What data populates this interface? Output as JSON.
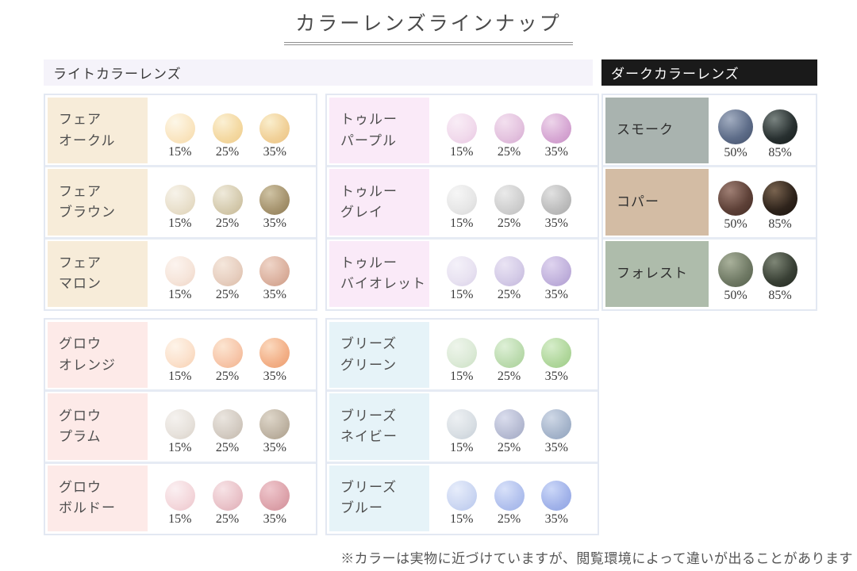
{
  "title": "カラーレンズラインナップ",
  "headers": {
    "light": "ライトカラーレンズ",
    "dark": "ダークカラーレンズ"
  },
  "note": "※カラーは実物に近づけていますが、閲覧環境によって違いが出ることがあります",
  "palette": {
    "page_bg": "#ffffff",
    "title_color": "#4a4a4a",
    "title_underline": "#8f8f8f",
    "header_light_bg": "#f5f3fa",
    "header_light_color": "#3a3a3a",
    "header_dark_bg": "#1a1a1a",
    "header_dark_color": "#ffffff",
    "group_border": "#e3e8f2",
    "row_separator": "#e6ebf4",
    "note_color": "#555555"
  },
  "groups": {
    "fair": {
      "rows": [
        {
          "name": [
            "フェア",
            "オークル"
          ],
          "name_bg": "#f7ecd9",
          "swatches": [
            {
              "pct": "15%",
              "hi": "#fdf7e8",
              "base": "#fae6c2",
              "rim": "#f5d9a8"
            },
            {
              "pct": "25%",
              "hi": "#fbf0d4",
              "base": "#f4d9a2",
              "rim": "#eecb8a"
            },
            {
              "pct": "35%",
              "hi": "#faeecd",
              "base": "#f1d199",
              "rim": "#ebc180"
            }
          ]
        },
        {
          "name": [
            "フェア",
            "ブラウン"
          ],
          "name_bg": "#f7ecd9",
          "swatches": [
            {
              "pct": "15%",
              "hi": "#f7f3ea",
              "base": "#e9e0cc",
              "rim": "#dcd0b4"
            },
            {
              "pct": "25%",
              "hi": "#efeadb",
              "base": "#d6ccb0",
              "rim": "#c5b793"
            },
            {
              "pct": "35%",
              "hi": "#cfc3a4",
              "base": "#a79570",
              "rim": "#8c7a53"
            }
          ]
        },
        {
          "name": [
            "フェア",
            "マロン"
          ],
          "name_bg": "#f7ecd9",
          "swatches": [
            {
              "pct": "15%",
              "hi": "#fcf4ef",
              "base": "#f6e5da",
              "rim": "#eed3c4"
            },
            {
              "pct": "25%",
              "hi": "#f5e7dc",
              "base": "#e7cfc0",
              "rim": "#dbbba5"
            },
            {
              "pct": "35%",
              "hi": "#efd5c8",
              "base": "#dcb2a0",
              "rim": "#cc9a84"
            }
          ]
        }
      ]
    },
    "glow": {
      "rows": [
        {
          "name": [
            "グロウ",
            "オレンジ"
          ],
          "name_bg": "#fdeae8",
          "swatches": [
            {
              "pct": "15%",
              "hi": "#fef4e9",
              "base": "#fbe1cc",
              "rim": "#f7ceae"
            },
            {
              "pct": "25%",
              "hi": "#fce5d1",
              "base": "#f7c7ab",
              "rim": "#f1b28b"
            },
            {
              "pct": "35%",
              "hi": "#fbd9be",
              "base": "#f3b189",
              "rim": "#eb9c6d"
            }
          ]
        },
        {
          "name": [
            "グロウ",
            "プラム"
          ],
          "name_bg": "#fdeae8",
          "swatches": [
            {
              "pct": "15%",
              "hi": "#f5f2ef",
              "base": "#e7e2dc",
              "rim": "#d8d0c6"
            },
            {
              "pct": "25%",
              "hi": "#eae5df",
              "base": "#d4ccc3",
              "rim": "#c2b7aa"
            },
            {
              "pct": "35%",
              "hi": "#ded6c9",
              "base": "#c0b5a5",
              "rim": "#a99c87"
            }
          ]
        },
        {
          "name": [
            "グロウ",
            "ボルドー"
          ],
          "name_bg": "#fdeae8",
          "swatches": [
            {
              "pct": "15%",
              "hi": "#fbf0f2",
              "base": "#f4d8dc",
              "rim": "#ebc3ca"
            },
            {
              "pct": "25%",
              "hi": "#f7e3e6",
              "base": "#eac4ca",
              "rim": "#ddaab3"
            },
            {
              "pct": "35%",
              "hi": "#efc7cd",
              "base": "#dea5ad",
              "rim": "#cf8c96"
            }
          ]
        }
      ]
    },
    "true": {
      "rows": [
        {
          "name": [
            "トゥルー",
            "パープル"
          ],
          "name_bg": "#faeaf8",
          "swatches": [
            {
              "pct": "15%",
              "hi": "#f9edf6",
              "base": "#f1daec",
              "rim": "#e8c5e1"
            },
            {
              "pct": "25%",
              "hi": "#f3e0ef",
              "base": "#e4c3df",
              "rim": "#d5a9d1"
            },
            {
              "pct": "35%",
              "hi": "#edd5ea",
              "base": "#d7a8d4",
              "rim": "#c78fc3"
            }
          ]
        },
        {
          "name": [
            "トゥルー",
            "グレイ"
          ],
          "name_bg": "#faeaf8",
          "swatches": [
            {
              "pct": "15%",
              "hi": "#f6f6f6",
              "base": "#e7e7e7",
              "rim": "#d7d7d7"
            },
            {
              "pct": "25%",
              "hi": "#eaeaea",
              "base": "#d0d0d0",
              "rim": "#bdbdbd"
            },
            {
              "pct": "35%",
              "hi": "#e1e1e1",
              "base": "#bebebe",
              "rim": "#a9a9a9"
            }
          ]
        },
        {
          "name": [
            "トゥルー",
            "バイオレット"
          ],
          "name_bg": "#faeaf8",
          "swatches": [
            {
              "pct": "15%",
              "hi": "#f4f1f9",
              "base": "#e8e2f1",
              "rim": "#d8cfe8"
            },
            {
              "pct": "25%",
              "hi": "#eae4f4",
              "base": "#d4cbe7",
              "rim": "#c2b5da"
            },
            {
              "pct": "35%",
              "hi": "#dfd4ef",
              "base": "#c2b3dd",
              "rim": "#ae9ad0"
            }
          ]
        }
      ]
    },
    "breeze": {
      "rows": [
        {
          "name": [
            "ブリーズ",
            "グリーン"
          ],
          "name_bg": "#e6f3f8",
          "swatches": [
            {
              "pct": "15%",
              "hi": "#eef5eb",
              "base": "#dcead7",
              "rim": "#c9dfc0"
            },
            {
              "pct": "25%",
              "hi": "#def0d7",
              "base": "#bddcb0",
              "rim": "#a8d096"
            },
            {
              "pct": "35%",
              "hi": "#d6edca",
              "base": "#b2d89e",
              "rim": "#9ccb85"
            }
          ]
        },
        {
          "name": [
            "ブリーズ",
            "ネイビー"
          ],
          "name_bg": "#e6f3f8",
          "swatches": [
            {
              "pct": "15%",
              "hi": "#edf0f3",
              "base": "#d9dfe4",
              "rim": "#c4cdd6"
            },
            {
              "pct": "25%",
              "hi": "#dadded",
              "base": "#b8bdd4",
              "rim": "#a0a7c2"
            },
            {
              "pct": "35%",
              "hi": "#cfd8e6",
              "base": "#a7b6cc",
              "rim": "#8fa2bd"
            }
          ]
        },
        {
          "name": [
            "ブリーズ",
            "ブルー"
          ],
          "name_bg": "#e6f3f8",
          "swatches": [
            {
              "pct": "15%",
              "hi": "#e7edfb",
              "base": "#ccd7f2",
              "rim": "#b5c5ec"
            },
            {
              "pct": "25%",
              "hi": "#d8e1f9",
              "base": "#b3c2ee",
              "rim": "#9cb0e7"
            },
            {
              "pct": "35%",
              "hi": "#ccd8f8",
              "base": "#a3b4ea",
              "rim": "#8ca1e2"
            }
          ]
        }
      ]
    },
    "dark": {
      "rows": [
        {
          "name": [
            "スモーク"
          ],
          "name_bg": "#a9b3af",
          "swatches": [
            {
              "pct": "50%",
              "hi": "#a2adc0",
              "base": "#5d6c88",
              "rim": "#434f68"
            },
            {
              "pct": "85%",
              "hi": "#798380",
              "base": "#283030",
              "rim": "#141a19"
            }
          ]
        },
        {
          "name": [
            "コパー"
          ],
          "name_bg": "#d3bca4",
          "swatches": [
            {
              "pct": "50%",
              "hi": "#9f7f74",
              "base": "#5d4037",
              "rim": "#422b24"
            },
            {
              "pct": "85%",
              "hi": "#79634f",
              "base": "#2e231b",
              "rim": "#19120d"
            }
          ]
        },
        {
          "name": [
            "フォレスト"
          ],
          "name_bg": "#aebcab",
          "swatches": [
            {
              "pct": "50%",
              "hi": "#a9b19b",
              "base": "#707a65",
              "rim": "#525d49"
            },
            {
              "pct": "85%",
              "hi": "#7e8676",
              "base": "#394035",
              "rim": "#22271f"
            }
          ]
        }
      ]
    }
  }
}
